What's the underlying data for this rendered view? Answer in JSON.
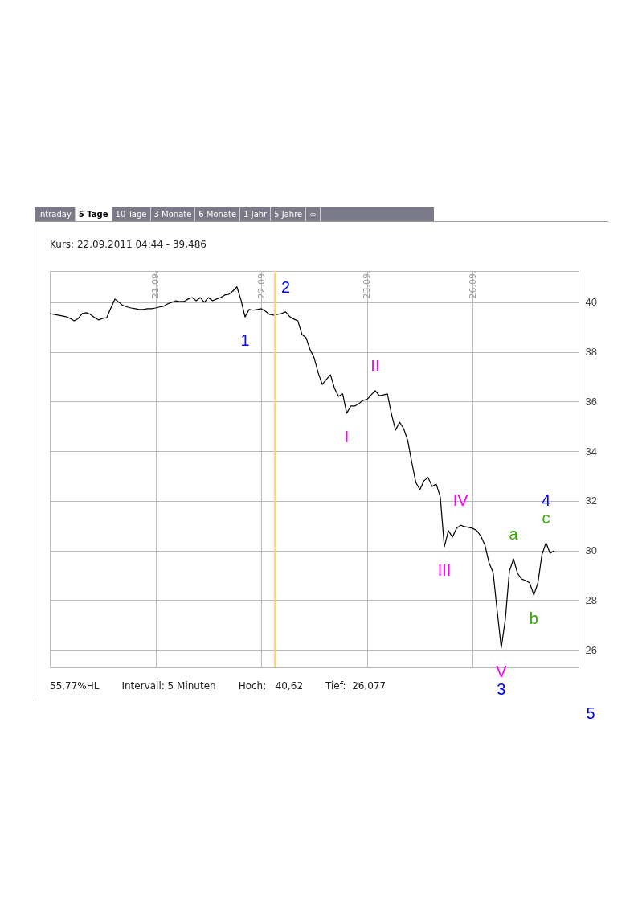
{
  "chart_data": {
    "type": "line",
    "title": "Kurs: 22.09.2011 04:44 - 39,486",
    "categories": [
      null,
      null,
      null,
      null,
      null,
      null,
      null,
      null,
      null,
      null,
      null,
      null,
      null,
      null,
      null,
      null,
      null,
      null,
      null,
      null,
      null,
      null,
      null,
      null,
      null,
      null,
      "21.09.",
      null,
      null,
      null,
      null,
      null,
      null,
      null,
      null,
      null,
      null,
      null,
      null,
      null,
      null,
      null,
      null,
      null,
      null,
      null,
      null,
      null,
      null,
      null,
      null,
      null,
      "22.09.",
      null,
      null,
      null,
      null,
      null,
      null,
      null,
      null,
      null,
      null,
      null,
      null,
      null,
      null,
      null,
      null,
      null,
      null,
      null,
      null,
      null,
      null,
      null,
      null,
      null,
      "23.09.",
      null,
      null,
      null,
      null,
      null,
      null,
      null,
      null,
      null,
      null,
      null,
      null,
      null,
      null,
      null,
      null,
      null,
      null,
      null,
      null,
      null,
      null,
      null,
      null,
      null,
      "26.09.",
      null,
      null,
      null,
      null,
      null,
      null,
      null,
      null,
      null,
      null,
      null,
      null,
      null,
      null,
      null,
      null,
      null,
      null,
      null,
      null,
      null,
      null,
      null,
      null,
      null,
      null
    ],
    "ylim": [
      25.29,
      41.26
    ],
    "yticks": [
      26,
      28,
      30,
      32,
      34,
      36,
      38,
      40
    ],
    "grid": true,
    "series": [
      {
        "color": "#000000",
        "values": [
          39.55,
          39.51,
          39.48,
          39.45,
          39.42,
          39.35,
          39.25,
          39.35,
          39.55,
          39.58,
          39.51,
          39.38,
          39.29,
          39.35,
          39.38,
          39.77,
          40.13,
          40.0,
          39.87,
          39.81,
          39.77,
          39.74,
          39.71,
          39.71,
          39.74,
          39.74,
          39.77,
          39.81,
          39.84,
          39.94,
          40.0,
          40.06,
          40.03,
          40.03,
          40.13,
          40.19,
          40.06,
          40.19,
          40.0,
          40.19,
          40.06,
          40.13,
          40.19,
          40.29,
          40.32,
          40.45,
          40.62,
          40.1,
          39.41,
          39.71,
          39.68,
          39.71,
          39.74,
          39.64,
          39.51,
          39.48,
          39.51,
          39.55,
          39.61,
          39.42,
          39.32,
          39.25,
          38.7,
          38.57,
          38.09,
          37.76,
          37.15,
          36.69,
          36.89,
          37.08,
          36.53,
          36.21,
          36.31,
          35.53,
          35.82,
          35.82,
          35.92,
          36.05,
          36.08,
          36.27,
          36.44,
          36.24,
          36.27,
          36.31,
          35.5,
          34.85,
          35.17,
          34.91,
          34.43,
          33.55,
          32.74,
          32.45,
          32.81,
          32.94,
          32.58,
          32.68,
          32.16,
          30.15,
          30.8,
          30.54,
          30.89,
          31.02,
          30.96,
          30.93,
          30.89,
          30.8,
          30.57,
          30.21,
          29.5,
          29.11,
          27.56,
          26.08,
          27.23,
          29.17,
          29.66,
          29.08,
          28.85,
          28.79,
          28.69,
          28.2,
          28.69,
          29.83,
          30.31,
          29.89,
          29.99,
          null,
          null,
          null,
          null,
          null,
          null
        ]
      }
    ],
    "annotations": [
      "Intraday",
      "5 Tage",
      "10 Tage",
      "3 Monate",
      "6 Monate",
      "1 Jahr",
      "5 Jahre",
      "∞",
      "55,77%HL",
      "Intervall: 5 Minuten",
      "Hoch:   40,62",
      "Tief:  26,077",
      {
        "text": "5"
      },
      {
        "text": "1",
        "y": 39.41
      },
      {
        "text": "2",
        "y": 39.61
      },
      {
        "text": "I",
        "y": 35.53
      },
      {
        "text": "II",
        "y": 36.44
      },
      {
        "text": "III",
        "y": 30.15
      },
      {
        "text": "IV",
        "y": 31.02
      },
      {
        "text": "V",
        "y": 26.08
      },
      {
        "text": "a",
        "y": 29.66
      },
      {
        "text": "b",
        "y": 28.2
      },
      {
        "text": "c",
        "y": 30.31
      },
      {
        "text": "3",
        "y": 26.08
      },
      {
        "text": "4",
        "y": 30.31
      }
    ]
  }
}
